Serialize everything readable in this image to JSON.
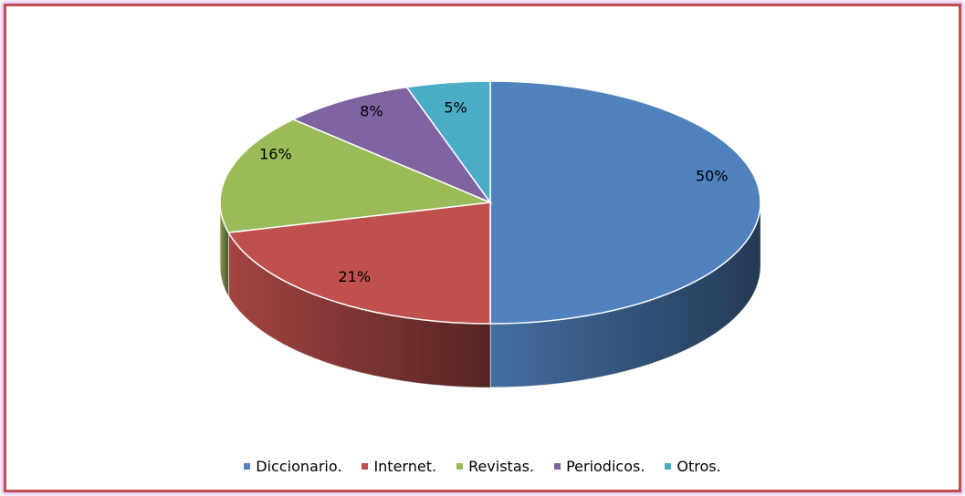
{
  "chart_data": {
    "type": "pie",
    "categories": [
      "Diccionario.",
      "Internet.",
      "Revistas.",
      "Periodicos.",
      "Otros."
    ],
    "values": [
      50,
      21,
      16,
      8,
      5
    ],
    "value_labels": [
      "50%",
      "21%",
      "16%",
      "8%",
      "5%"
    ],
    "colors": [
      "#4f81bd",
      "#c0504d",
      "#9bbb59",
      "#8064a2",
      "#4bacc6"
    ],
    "legend": "bottom"
  }
}
